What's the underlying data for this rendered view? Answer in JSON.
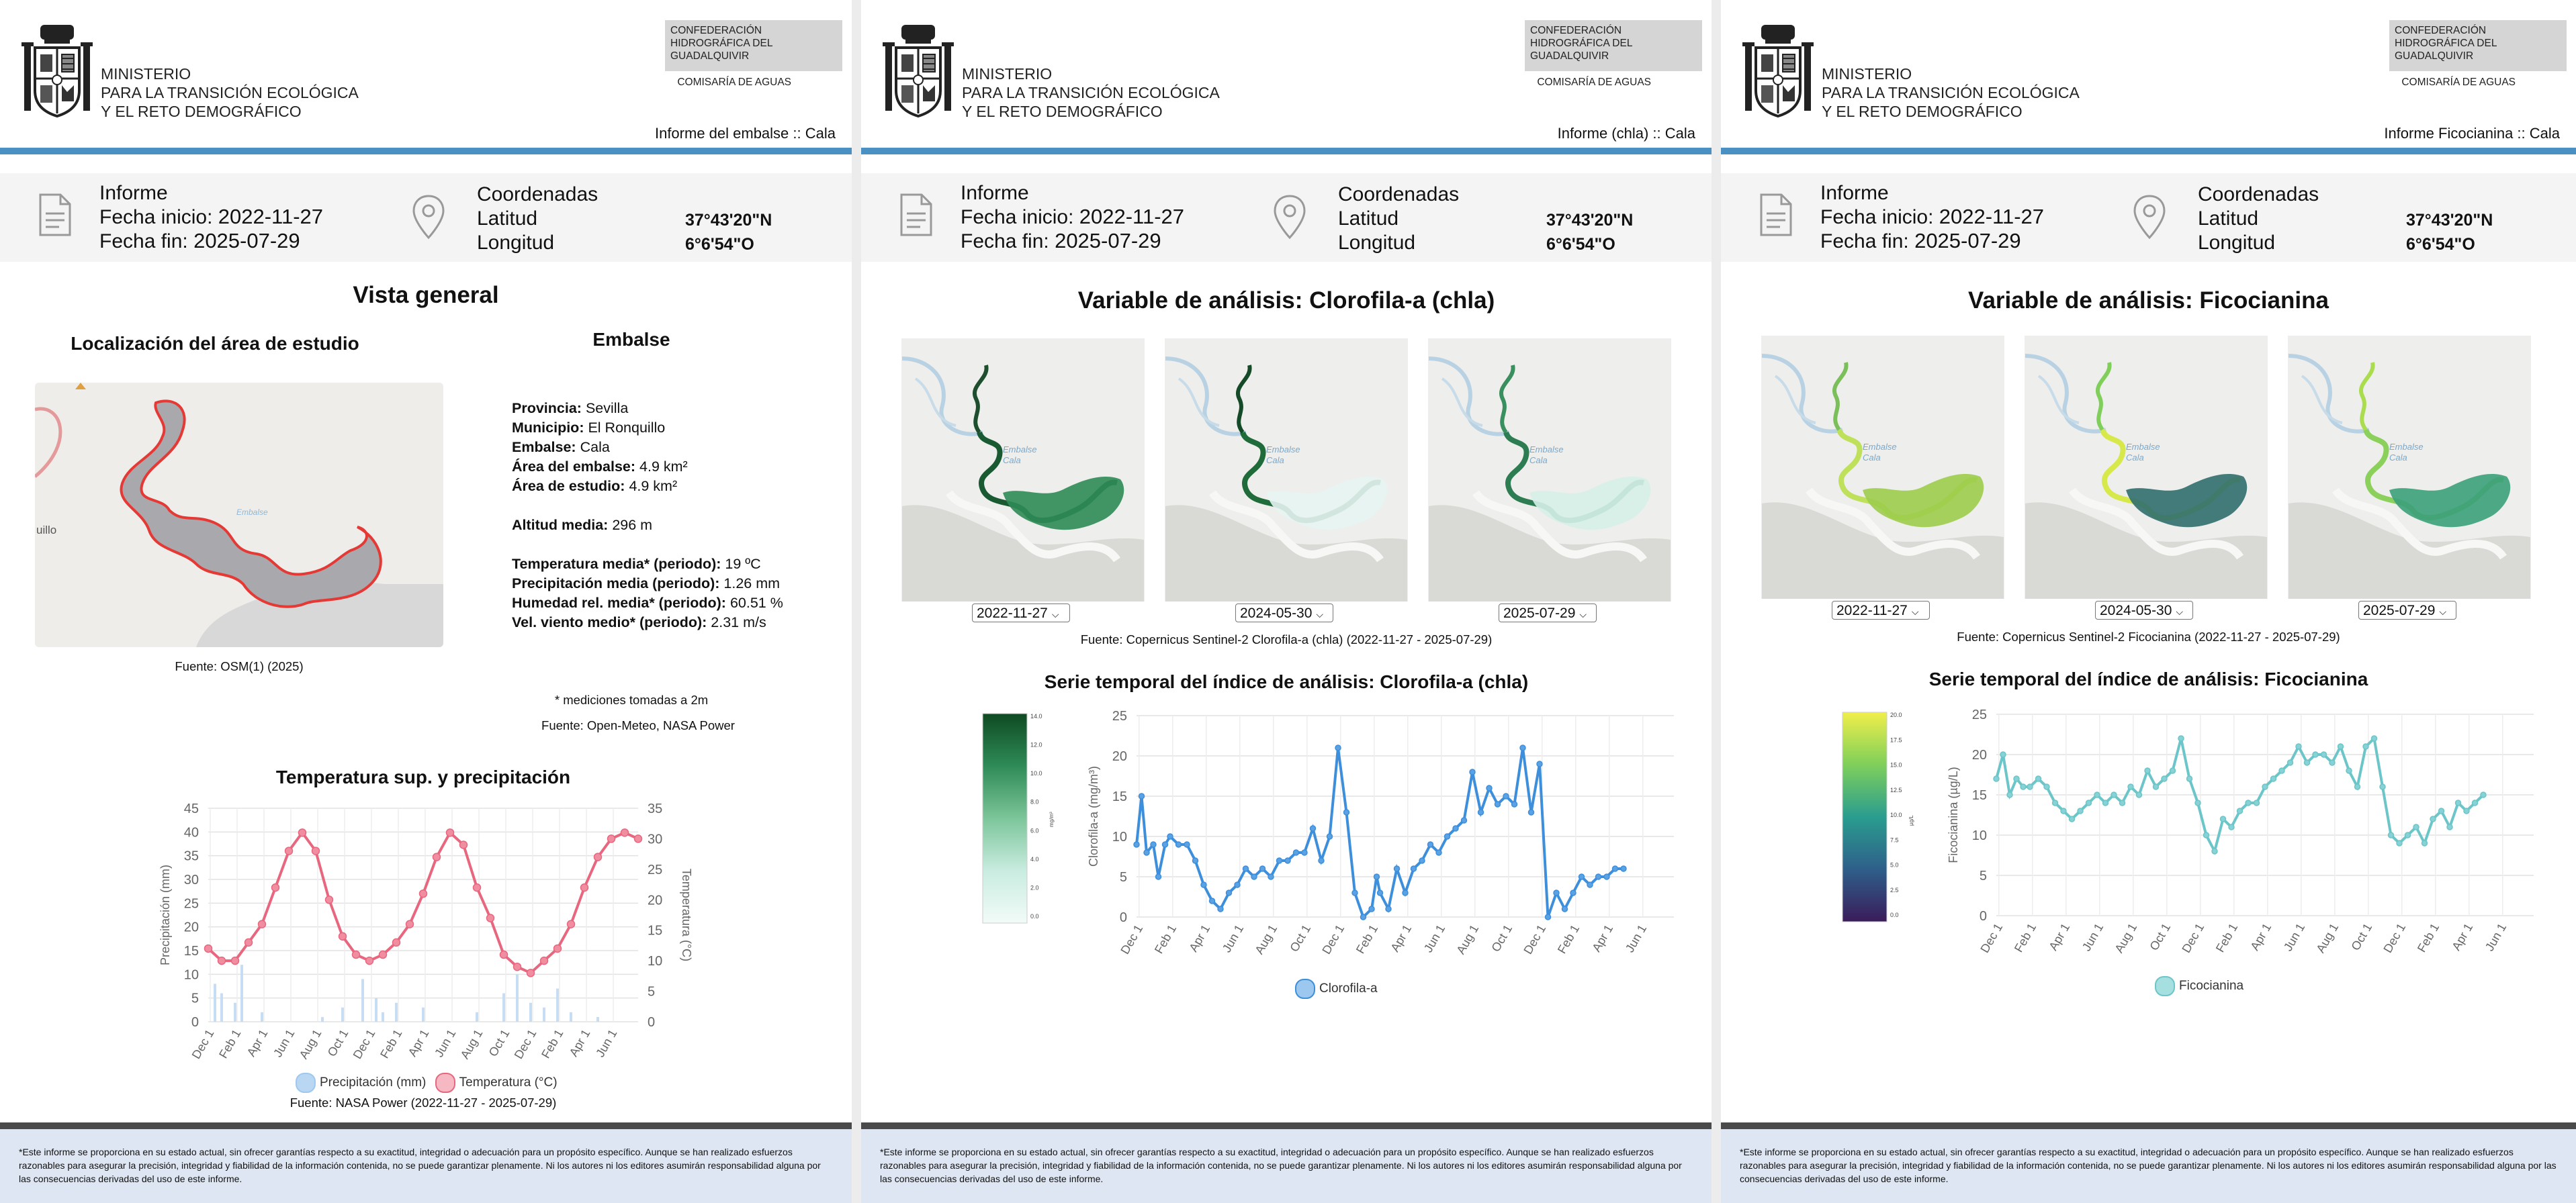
{
  "header": {
    "ministry_lines": [
      "MINISTERIO",
      "PARA LA TRANSICIÓN ECOLÓGICA",
      "Y EL RETO DEMOGRÁFICO"
    ],
    "confederation_lines": [
      "CONFEDERACIÓN",
      "HIDROGRÁFICA DEL",
      "GUADALQUIVIR"
    ],
    "commission": "COMISARÍA DE AGUAS"
  },
  "info": {
    "report_label": "Informe",
    "start_label": "Fecha inicio:",
    "start_date": "2022-11-27",
    "end_label": "Fecha fin:",
    "end_date": "2025-07-29",
    "coords_label": "Coordenadas",
    "lat_label": "Latitud",
    "lat_value": "37°43'20\"N",
    "lon_label": "Longitud",
    "lon_value": "6°6'54\"O"
  },
  "page1": {
    "report_title": "Informe del embalse :: Cala",
    "section_title": "Vista general",
    "map_title": "Localización del área de estudio",
    "map_source": "Fuente: OSM(1) (2025)",
    "map_label_left": "uillo",
    "map_label_water": "Embalse",
    "facts_title": "Embalse",
    "facts": [
      {
        "k": "Provincia:",
        "v": "Sevilla"
      },
      {
        "k": "Municipio:",
        "v": "El Ronquillo"
      },
      {
        "k": "Embalse:",
        "v": "Cala"
      },
      {
        "k": "Área del embalse:",
        "v": "4.9 km²"
      },
      {
        "k": "Área de estudio:",
        "v": "4.9 km²"
      },
      {
        "k": "",
        "v": ""
      },
      {
        "k": "Altitud media:",
        "v": "296 m"
      },
      {
        "k": "",
        "v": ""
      },
      {
        "k": "Temperatura media* (periodo):",
        "v": "19 ºC"
      },
      {
        "k": "Precipitación media (periodo):",
        "v": "1.26 mm"
      },
      {
        "k": "Humedad rel. media* (periodo):",
        "v": "60.51 %"
      },
      {
        "k": "Vel. viento medio* (periodo):",
        "v": "2.31 m/s"
      }
    ],
    "facts_note": "* mediciones tomadas a 2m",
    "facts_source": "Fuente: Open-Meteo, NASA Power",
    "chart_title": "Temperatura sup. y precipitación",
    "chart_source": "Fuente: NASA Power (2022-11-27 - 2025-07-29)",
    "legend_precip": "Precipitación (mm)",
    "legend_temp": "Temperatura (°C)"
  },
  "page2": {
    "report_title": "Informe (chla) :: Cala",
    "section_title": "Variable de análisis: Clorofila-a (chla)",
    "selects": [
      "2022-11-27",
      "2024-05-30",
      "2025-07-29"
    ],
    "maps_source": "Fuente: Copernicus Sentinel-2 Clorofila-a (chla) (2022-11-27 - 2025-07-29)",
    "chart_title": "Serie temporal del índice de análisis: Clorofila-a (chla)",
    "legend": "Clorofila-a",
    "colorbar_ticks": [
      "14.0",
      "12.0",
      "10.0",
      "8.0",
      "6.0",
      "4.0",
      "2.0",
      "0.0"
    ],
    "colorbar_unit": "mg/m³"
  },
  "page3": {
    "report_title": "Informe Ficocianina :: Cala",
    "section_title": "Variable de análisis: Ficocianina",
    "selects": [
      "2022-11-27",
      "2024-05-30",
      "2025-07-29"
    ],
    "maps_source": "Fuente: Copernicus Sentinel-2 Ficocianina (2022-11-27 - 2025-07-29)",
    "chart_title": "Serie temporal del índice de análisis: Ficocianina",
    "legend": "Ficocianina",
    "colorbar_ticks": [
      "20.0",
      "17.5",
      "15.0",
      "12.5",
      "10.0",
      "7.5",
      "5.0",
      "2.5",
      "0.0"
    ],
    "colorbar_unit": "µg/L"
  },
  "map_labels": {
    "water": "Embalse",
    "town": "Cala"
  },
  "footer": {
    "disclaimer": "*Este informe se proporciona en su estado actual, sin ofrecer garantías respecto a su exactitud, integridad o adecuación para un propósito específico. Aunque se han realizado esfuerzos razonables para asegurar la precisión, integridad y fiabilidad de la información contenida, no se puede garantizar plenamente. Ni los autores ni los editores asumirán responsabilidad alguna por las consecuencias derivadas del uso de este informe."
  },
  "colors": {
    "rule": "#4a90c2",
    "temp": "#e8677f",
    "precip": "#9ec8ee",
    "chla": "#3d8fdc",
    "phyco": "#6cc5c8",
    "outline": "#e53935"
  },
  "chart_data": [
    {
      "type": "line",
      "title": "Temperatura sup. y precipitación",
      "xlabel": "",
      "ylabel": "Precipitación (mm)",
      "y2label": "Temperatura (°C)",
      "x_ticks": [
        "Dec 1",
        "Feb 1",
        "Apr 1",
        "Jun 1",
        "Aug 1",
        "Oct 1",
        "Dec 1",
        "Feb 1",
        "Apr 1",
        "Jun 1",
        "Aug 1",
        "Oct 1",
        "Dec 1",
        "Feb 1",
        "Apr 1",
        "Jun 1"
      ],
      "ylim": [
        0,
        45
      ],
      "y_ticks": [
        0,
        5,
        10,
        15,
        20,
        25,
        30,
        35,
        40,
        45
      ],
      "y2lim": [
        0,
        35
      ],
      "y2_ticks": [
        0,
        5,
        10,
        15,
        20,
        25,
        30,
        35
      ],
      "series": [
        {
          "name": "Temperatura (°C)",
          "axis": "right",
          "x_months": [
            0,
            1,
            2,
            3,
            4,
            5,
            6,
            7,
            8,
            9,
            10,
            11,
            12,
            13,
            14,
            15,
            16,
            17,
            18,
            19,
            20,
            21,
            22,
            23,
            24,
            25,
            26,
            27,
            28,
            29,
            30,
            31,
            32
          ],
          "values": [
            12,
            10,
            10,
            13,
            16,
            22,
            28,
            31,
            28,
            20,
            14,
            11,
            10,
            11,
            13,
            16,
            21,
            27,
            31,
            29,
            22,
            17,
            11,
            9,
            8,
            10,
            12,
            16,
            22,
            27,
            30,
            31,
            30
          ]
        },
        {
          "name": "Precipitación (mm)",
          "axis": "left",
          "x_months": [
            0.5,
            1,
            2,
            2.5,
            4,
            8.5,
            10,
            11.5,
            12.5,
            13,
            14,
            16,
            20,
            22,
            23,
            24,
            25,
            26,
            27,
            29
          ],
          "values": [
            8,
            6,
            4,
            12,
            2,
            1,
            3,
            9,
            5,
            2,
            4,
            3,
            2,
            6,
            10,
            4,
            3,
            7,
            2,
            1
          ]
        }
      ]
    },
    {
      "type": "line",
      "title": "Serie temporal del índice de análisis: Clorofila-a (chla)",
      "xlabel": "",
      "ylabel": "Clorofila-a (mg/m³)",
      "x_ticks": [
        "Dec 1",
        "Feb 1",
        "Apr 1",
        "Jun 1",
        "Aug 1",
        "Oct 1",
        "Dec 1",
        "Feb 1",
        "Apr 1",
        "Jun 1",
        "Aug 1",
        "Oct 1",
        "Dec 1",
        "Feb 1",
        "Apr 1",
        "Jun 1"
      ],
      "ylim": [
        0,
        25
      ],
      "y_ticks": [
        0,
        5,
        10,
        15,
        20,
        25
      ],
      "series": [
        {
          "name": "Clorofila-a",
          "x_months": [
            0,
            0.3,
            0.6,
            1,
            1.3,
            1.7,
            2,
            2.5,
            3,
            3.5,
            4,
            4.5,
            5,
            5.5,
            6,
            6.5,
            7,
            7.5,
            8,
            8.5,
            9,
            9.5,
            10,
            10.5,
            11,
            11.5,
            12,
            12.5,
            13,
            13.5,
            14,
            14.3,
            14.5,
            15,
            15.5,
            16,
            16.5,
            17,
            17.5,
            18,
            18.5,
            19,
            19.5,
            20,
            20.5,
            21,
            21.5,
            22,
            22.5,
            23,
            23.5,
            24,
            24.5,
            25,
            25.5,
            26,
            26.5,
            27,
            27.5,
            28,
            28.5,
            29
          ],
          "values": [
            9,
            15,
            8,
            9,
            5,
            9,
            10,
            9,
            9,
            7,
            4,
            2,
            1,
            3,
            4,
            6,
            5,
            6,
            5,
            7,
            7,
            8,
            8,
            11,
            7,
            10,
            21,
            13,
            3,
            0,
            1,
            5,
            3,
            1,
            6,
            3,
            6,
            7,
            9,
            8,
            10,
            11,
            12,
            18,
            13,
            16,
            14,
            15,
            14,
            21,
            13,
            19,
            0,
            3,
            1,
            3,
            5,
            4,
            5,
            5,
            6,
            6
          ]
        }
      ]
    },
    {
      "type": "line",
      "title": "Serie temporal del índice de análisis: Ficocianina",
      "xlabel": "",
      "ylabel": "Ficocianina (µg/L)",
      "x_ticks": [
        "Dec 1",
        "Feb 1",
        "Apr 1",
        "Jun 1",
        "Aug 1",
        "Oct 1",
        "Dec 1",
        "Feb 1",
        "Apr 1",
        "Jun 1",
        "Aug 1",
        "Oct 1",
        "Dec 1",
        "Feb 1",
        "Apr 1",
        "Jun 1"
      ],
      "ylim": [
        0,
        25
      ],
      "y_ticks": [
        0,
        5,
        10,
        15,
        20,
        25
      ],
      "series": [
        {
          "name": "Ficocianina",
          "x_months": [
            0,
            0.4,
            0.8,
            1.2,
            1.6,
            2,
            2.5,
            3,
            3.5,
            4,
            4.5,
            5,
            5.5,
            6,
            6.5,
            7,
            7.5,
            8,
            8.5,
            9,
            9.5,
            10,
            10.5,
            11,
            11.5,
            12,
            12.5,
            13,
            13.5,
            14,
            14.5,
            15,
            15.5,
            16,
            16.5,
            17,
            17.5,
            18,
            18.5,
            19,
            19.5,
            20,
            20.5,
            21,
            21.5,
            22,
            22.5,
            23,
            23.5,
            24,
            24.5,
            25,
            25.5,
            26,
            26.5,
            27,
            27.5,
            28,
            28.5,
            29
          ],
          "values": [
            17,
            20,
            15,
            17,
            16,
            16,
            17,
            16,
            14,
            13,
            12,
            13,
            14,
            15,
            14,
            15,
            14,
            16,
            15,
            18,
            16,
            17,
            18,
            22,
            17,
            14,
            10,
            8,
            12,
            11,
            13,
            14,
            14,
            16,
            17,
            18,
            19,
            21,
            19,
            20,
            20,
            19,
            21,
            18,
            16,
            21,
            22,
            16,
            10,
            9,
            10,
            11,
            9,
            12,
            13,
            11,
            14,
            13,
            14,
            15
          ]
        }
      ]
    }
  ]
}
